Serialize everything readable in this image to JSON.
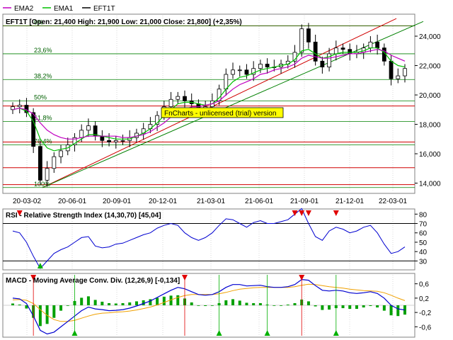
{
  "legend": {
    "items": [
      {
        "name": "EMA2",
        "color": "#c000c0"
      },
      {
        "name": "EMA1",
        "color": "#00c000"
      },
      {
        "name": "EFT1T",
        "color": "#000000"
      }
    ]
  },
  "price_panel": {
    "title": "EFT1T [Open: 21,400  High: 21,900  Low: 21,000  Close: 21,800] (+2,35%)",
    "watermark": "FnCharts - unlicensed (trial) version",
    "y_ticks": [
      "24,000",
      "22,000",
      "20,000",
      "18,000",
      "16,000",
      "14,000"
    ],
    "fib_levels": [
      {
        "label": "0%",
        "value": 24.7
      },
      {
        "label": "23,6%",
        "value": 22.8
      },
      {
        "label": "38,2%",
        "value": 21.05
      },
      {
        "label": "50%",
        "value": 19.6
      },
      {
        "label": "61,8%",
        "value": 18.2
      },
      {
        "label": "76,4%",
        "value": 16.6
      },
      {
        "label": "100%",
        "value": 13.7
      }
    ],
    "red_levels": [
      24.7,
      19.25,
      16.8,
      15.05,
      13.9
    ]
  },
  "rsi_panel": {
    "title": "RSI - Relative Strength Index (14,30,70) [45,04]",
    "y_ticks": [
      "80",
      "70",
      "60",
      "50",
      "40",
      "30"
    ],
    "upper": 70,
    "lower": 30
  },
  "macd_panel": {
    "title": "MACD - Moving Average Conv. Div. (12,26,9) [-0,134]",
    "y_ticks": [
      "0,6",
      "0,2",
      "-0,2",
      "-0,6"
    ]
  },
  "x_ticks": [
    "20-03-02",
    "20-06-01",
    "20-09-01",
    "20-12-01",
    "21-03-01",
    "21-06-01",
    "21-09-01",
    "21-12-01",
    "22-03-01"
  ],
  "colors": {
    "red_line": "#d00000",
    "fib_line": "#008000",
    "ema2": "#c000c0",
    "ema1": "#00c000",
    "price": "#000000",
    "rsi": "#0000d0",
    "macd": "#0000d0",
    "signal": "#f0a000",
    "hist": "#00a000",
    "watermark_bg": "#ffff00"
  },
  "chart_data": {
    "type": "line",
    "title": "EFT1T [Open: 21,400  High: 21,900  Low: 21,000  Close: 21,800] (+2,35%)",
    "x": [
      "20-02-10",
      "20-02-24",
      "20-03-02",
      "20-03-09",
      "20-03-16",
      "20-03-23",
      "20-03-30",
      "20-04-13",
      "20-04-27",
      "20-05-11",
      "20-05-25",
      "20-06-08",
      "20-06-22",
      "20-07-06",
      "20-07-20",
      "20-08-03",
      "20-08-17",
      "20-08-31",
      "20-09-14",
      "20-09-28",
      "20-10-12",
      "20-10-26",
      "20-11-09",
      "20-11-23",
      "20-12-07",
      "20-12-21",
      "21-01-04",
      "21-01-18",
      "21-02-01",
      "21-02-15",
      "21-03-01",
      "21-03-15",
      "21-03-29",
      "21-04-12",
      "21-04-26",
      "21-05-10",
      "21-05-24",
      "21-06-07",
      "21-06-21",
      "21-07-05",
      "21-07-19",
      "21-08-02",
      "21-08-16",
      "21-08-30",
      "21-09-13",
      "21-09-27",
      "21-10-11",
      "21-10-25",
      "21-11-08",
      "21-11-22",
      "21-12-06",
      "21-12-20",
      "22-01-03",
      "22-01-17",
      "22-01-31",
      "22-02-14",
      "22-02-28",
      "22-03-14"
    ],
    "series": [
      {
        "name": "EFT1T",
        "values": [
          19.2,
          19.3,
          18.8,
          16.5,
          14.2,
          15.0,
          15.8,
          16.2,
          16.6,
          17.1,
          17.6,
          17.9,
          17.2,
          16.9,
          16.8,
          16.9,
          16.9,
          17.1,
          17.4,
          17.7,
          18.0,
          18.6,
          19.2,
          19.7,
          19.9,
          19.6,
          19.4,
          19.1,
          19.2,
          19.6,
          20.4,
          21.4,
          21.7,
          21.7,
          21.4,
          21.8,
          22.1,
          21.9,
          21.9,
          22.1,
          22.3,
          22.9,
          24.5,
          23.6,
          22.3,
          21.9,
          22.8,
          23.2,
          23.1,
          22.8,
          22.9,
          23.2,
          23.6,
          23.2,
          22.3,
          21.1,
          21.3,
          21.8
        ]
      },
      {
        "name": "EMA1",
        "values": [
          19.0,
          19.1,
          18.9,
          18.2,
          17.0,
          16.4,
          16.2,
          16.3,
          16.4,
          16.7,
          17.0,
          17.3,
          17.3,
          17.2,
          17.1,
          17.0,
          17.0,
          17.0,
          17.2,
          17.4,
          17.7,
          18.1,
          18.6,
          19.0,
          19.4,
          19.5,
          19.5,
          19.4,
          19.3,
          19.4,
          19.8,
          20.4,
          20.9,
          21.2,
          21.3,
          21.5,
          21.7,
          21.8,
          21.9,
          22.0,
          22.1,
          22.4,
          23.0,
          23.1,
          22.8,
          22.5,
          22.6,
          22.8,
          22.9,
          22.9,
          22.9,
          23.0,
          23.2,
          23.2,
          22.9,
          22.3,
          22.0,
          21.9
        ]
      },
      {
        "name": "EMA2",
        "values": [
          19.0,
          19.1,
          19.0,
          18.7,
          18.1,
          17.6,
          17.3,
          17.1,
          17.0,
          17.0,
          17.1,
          17.2,
          17.2,
          17.2,
          17.2,
          17.2,
          17.1,
          17.1,
          17.2,
          17.3,
          17.5,
          17.8,
          18.1,
          18.5,
          18.8,
          19.0,
          19.2,
          19.2,
          19.3,
          19.4,
          19.6,
          20.0,
          20.4,
          20.7,
          20.9,
          21.1,
          21.4,
          21.5,
          21.7,
          21.8,
          21.9,
          22.1,
          22.5,
          22.7,
          22.6,
          22.5,
          22.5,
          22.6,
          22.7,
          22.8,
          22.8,
          22.9,
          23.0,
          23.1,
          23.0,
          22.7,
          22.5,
          22.3
        ]
      }
    ],
    "y_range": [
      13.4,
      25.4
    ]
  },
  "rsi_data": {
    "values": [
      62,
      60,
      50,
      35,
      22,
      30,
      38,
      42,
      45,
      50,
      55,
      56,
      46,
      44,
      45,
      48,
      49,
      52,
      55,
      58,
      60,
      65,
      68,
      70,
      68,
      60,
      55,
      52,
      55,
      60,
      68,
      75,
      74,
      70,
      66,
      71,
      73,
      70,
      70,
      72,
      74,
      80,
      86,
      70,
      56,
      52,
      62,
      66,
      64,
      60,
      62,
      66,
      68,
      60,
      48,
      38,
      40,
      45
    ],
    "range": [
      22,
      84
    ]
  },
  "macd_data": {
    "macd": [
      0.2,
      0.18,
      0.05,
      -0.3,
      -0.7,
      -0.8,
      -0.75,
      -0.6,
      -0.45,
      -0.3,
      -0.15,
      -0.05,
      -0.1,
      -0.12,
      -0.15,
      -0.14,
      -0.12,
      -0.08,
      -0.02,
      0.05,
      0.12,
      0.22,
      0.32,
      0.42,
      0.5,
      0.46,
      0.38,
      0.3,
      0.28,
      0.3,
      0.38,
      0.5,
      0.58,
      0.58,
      0.54,
      0.55,
      0.56,
      0.52,
      0.5,
      0.5,
      0.52,
      0.58,
      0.72,
      0.7,
      0.55,
      0.42,
      0.4,
      0.42,
      0.4,
      0.35,
      0.33,
      0.35,
      0.38,
      0.33,
      0.2,
      0.0,
      -0.1,
      -0.13
    ],
    "signal": [
      0.15,
      0.16,
      0.14,
      0.05,
      -0.12,
      -0.28,
      -0.4,
      -0.45,
      -0.45,
      -0.42,
      -0.36,
      -0.3,
      -0.25,
      -0.22,
      -0.21,
      -0.19,
      -0.18,
      -0.16,
      -0.13,
      -0.09,
      -0.05,
      0.01,
      0.08,
      0.15,
      0.22,
      0.27,
      0.3,
      0.3,
      0.3,
      0.3,
      0.32,
      0.36,
      0.41,
      0.45,
      0.47,
      0.49,
      0.5,
      0.5,
      0.5,
      0.5,
      0.5,
      0.52,
      0.56,
      0.59,
      0.58,
      0.55,
      0.52,
      0.5,
      0.48,
      0.45,
      0.43,
      0.41,
      0.4,
      0.39,
      0.35,
      0.28,
      0.2,
      0.13
    ],
    "range": [
      -0.85,
      0.85
    ]
  }
}
